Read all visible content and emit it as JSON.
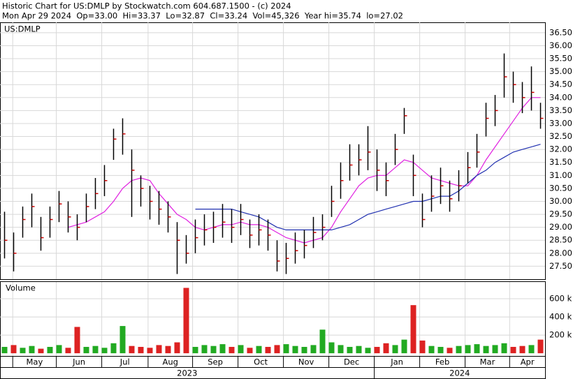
{
  "chart_data": {
    "type": "stock",
    "title": "Historic Chart for US:DMLP by Stockwatch.com 604.687.1500 - (c) 2024",
    "subtitle": "Mon Apr 29 2024  Op=33.00  Hi=33.37  Lo=32.87  Cl=33.24  Vol=45,326  Year hi=35.74  lo=27.02",
    "symbol": "US:DMLP",
    "xlim": [
      -0.5,
      59.5
    ],
    "xticks": [
      {
        "value": 0.9,
        "label": "May"
      },
      {
        "value": 5.7,
        "label": "Jun"
      },
      {
        "value": 10.7,
        "label": "Jul"
      },
      {
        "value": 15.8,
        "label": "Aug"
      },
      {
        "value": 20.7,
        "label": "Sep"
      },
      {
        "value": 25.7,
        "label": "Oct"
      },
      {
        "value": 30.7,
        "label": "Nov"
      },
      {
        "value": 35.7,
        "label": "Dec"
      },
      {
        "value": 40.7,
        "label": "Jan"
      },
      {
        "value": 45.7,
        "label": "Feb"
      },
      {
        "value": 50.7,
        "label": "Mar"
      },
      {
        "value": 55.6,
        "label": "Apr"
      }
    ],
    "years": [
      {
        "value": -0.5,
        "label": "2023"
      },
      {
        "value": 40.7,
        "label": "2024"
      }
    ],
    "ylim": [
      27.0,
      36.9
    ],
    "yticks": [
      {
        "value": 27.5,
        "label": "27.50"
      },
      {
        "value": 28,
        "label": "28.00"
      },
      {
        "value": 28.5,
        "label": "28.50"
      },
      {
        "value": 29,
        "label": "29.00"
      },
      {
        "value": 29.5,
        "label": "29.50"
      },
      {
        "value": 30,
        "label": "30.00"
      },
      {
        "value": 30.5,
        "label": "30.50"
      },
      {
        "value": 31,
        "label": "31.00"
      },
      {
        "value": 31.5,
        "label": "31.50"
      },
      {
        "value": 32,
        "label": "32.00"
      },
      {
        "value": 32.5,
        "label": "32.50"
      },
      {
        "value": 33,
        "label": "33.00"
      },
      {
        "value": 33.5,
        "label": "33.50"
      },
      {
        "value": 34,
        "label": "34.00"
      },
      {
        "value": 34.5,
        "label": "34.50"
      },
      {
        "value": 35,
        "label": "35.00"
      },
      {
        "value": 35.5,
        "label": "35.50"
      },
      {
        "value": 36,
        "label": "36.00"
      },
      {
        "value": 36.5,
        "label": "36.50"
      }
    ],
    "grid": true,
    "bar_color": "#000000",
    "close_color": "#cc0000",
    "high": [
      29.6,
      28.8,
      29.8,
      30.3,
      29.4,
      29.8,
      30.4,
      30.0,
      29.5,
      30.3,
      30.9,
      31.4,
      32.8,
      33.2,
      32.0,
      31.0,
      30.6,
      30.4,
      30.0,
      29.2,
      28.7,
      29.3,
      29.5,
      29.6,
      29.9,
      29.7,
      29.9,
      29.3,
      29.5,
      29.3,
      28.5,
      28.4,
      28.8,
      28.9,
      29.4,
      29.5,
      30.6,
      31.5,
      32.2,
      32.2,
      32.9,
      32.0,
      31.5,
      32.6,
      33.6,
      31.8,
      30.3,
      31.0,
      31.3,
      30.8,
      31.2,
      31.9,
      32.6,
      33.8,
      34.1,
      35.7,
      35.0,
      34.6,
      35.2,
      33.8
    ],
    "low": [
      27.8,
      27.3,
      28.6,
      29.0,
      28.1,
      28.6,
      29.2,
      28.8,
      28.5,
      29.2,
      29.7,
      30.2,
      31.6,
      31.8,
      29.4,
      29.8,
      29.3,
      29.1,
      28.8,
      27.2,
      27.6,
      28.0,
      28.3,
      28.4,
      28.6,
      28.4,
      28.7,
      28.2,
      28.3,
      28.1,
      27.3,
      27.2,
      27.6,
      27.8,
      28.2,
      28.5,
      29.4,
      30.1,
      30.8,
      31.0,
      31.2,
      30.4,
      30.2,
      31.4,
      32.6,
      30.2,
      29.0,
      29.6,
      29.9,
      29.6,
      30.0,
      30.7,
      31.3,
      32.5,
      32.9,
      34.0,
      33.8,
      33.4,
      33.5,
      32.8
    ],
    "close": [
      28.5,
      28.0,
      29.3,
      29.8,
      28.6,
      29.3,
      29.9,
      29.4,
      29.0,
      29.8,
      30.3,
      30.8,
      32.4,
      32.6,
      31.2,
      30.5,
      30.0,
      29.7,
      29.4,
      28.5,
      28.0,
      28.6,
      28.9,
      29.0,
      29.2,
      29.0,
      29.3,
      28.7,
      28.9,
      28.7,
      27.7,
      27.8,
      28.1,
      28.3,
      28.8,
      29.0,
      30.0,
      30.8,
      31.4,
      31.6,
      31.9,
      31.2,
      30.8,
      32.0,
      33.3,
      31.0,
      29.3,
      30.2,
      30.6,
      30.1,
      30.6,
      31.3,
      31.9,
      33.2,
      33.5,
      34.8,
      34.5,
      34.0,
      34.2,
      33.2
    ],
    "series": [
      {
        "color": "#e020e0",
        "values": [
          null,
          null,
          null,
          null,
          null,
          null,
          null,
          29.0,
          29.1,
          29.2,
          29.4,
          29.6,
          30.0,
          30.5,
          30.8,
          30.9,
          30.8,
          30.3,
          29.9,
          29.5,
          29.3,
          29.0,
          28.9,
          29.0,
          29.1,
          29.1,
          29.2,
          29.1,
          29.1,
          29.0,
          28.8,
          28.6,
          28.5,
          28.4,
          28.5,
          28.6,
          29.0,
          29.6,
          30.1,
          30.6,
          30.9,
          31.0,
          31.0,
          31.3,
          31.6,
          31.5,
          31.2,
          30.9,
          30.8,
          30.7,
          30.6,
          30.6,
          31.0,
          31.6,
          32.1,
          32.6,
          33.1,
          33.6,
          34.0,
          34.0
        ]
      },
      {
        "color": "#2030b0",
        "values": [
          null,
          null,
          null,
          null,
          null,
          null,
          null,
          null,
          null,
          null,
          null,
          null,
          null,
          null,
          null,
          null,
          null,
          null,
          null,
          null,
          null,
          29.7,
          29.7,
          29.7,
          29.7,
          29.7,
          29.6,
          29.5,
          29.4,
          29.2,
          29.0,
          28.9,
          28.9,
          28.9,
          28.9,
          28.9,
          28.9,
          29.0,
          29.1,
          29.3,
          29.5,
          29.6,
          29.7,
          29.8,
          29.9,
          30.0,
          30.0,
          30.1,
          30.2,
          30.2,
          30.4,
          30.7,
          31.0,
          31.2,
          31.5,
          31.7,
          31.9,
          32.0,
          32.1,
          32.2
        ]
      }
    ],
    "volume": {
      "label": "Volume",
      "up_color": "#22aa22",
      "down_color": "#dd2222",
      "ylim": [
        -30000,
        785000
      ],
      "yticks": [
        {
          "value": 200000,
          "label": "200 k"
        },
        {
          "value": 400000,
          "label": "400 k"
        },
        {
          "value": 600000,
          "label": "600 k"
        }
      ],
      "values": [
        70000,
        90000,
        60000,
        80000,
        50000,
        70000,
        90000,
        60000,
        290000,
        70000,
        80000,
        60000,
        110000,
        300000,
        80000,
        70000,
        60000,
        90000,
        80000,
        120000,
        720000,
        70000,
        90000,
        80000,
        100000,
        70000,
        90000,
        60000,
        80000,
        70000,
        90000,
        100000,
        80000,
        70000,
        90000,
        260000,
        120000,
        90000,
        70000,
        80000,
        60000,
        70000,
        110000,
        90000,
        150000,
        530000,
        140000,
        80000,
        70000,
        60000,
        80000,
        90000,
        100000,
        80000,
        90000,
        110000,
        70000,
        80000,
        90000,
        150000
      ]
    }
  }
}
